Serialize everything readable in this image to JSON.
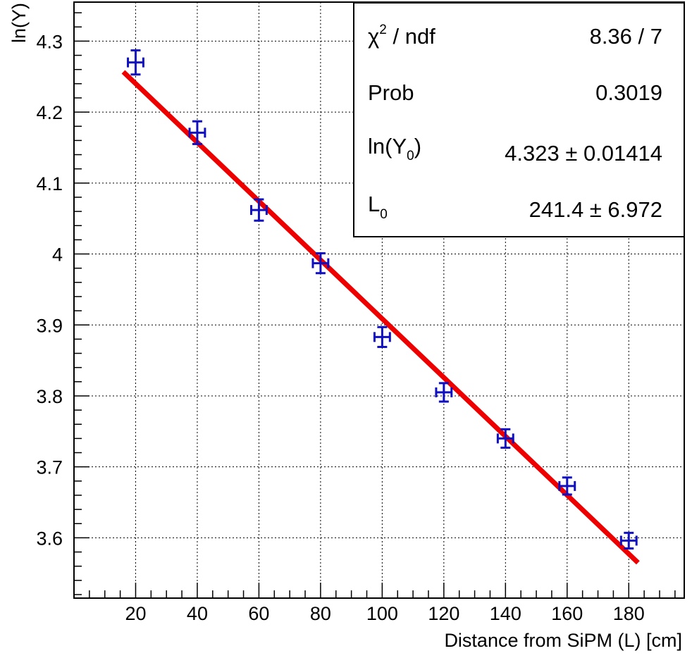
{
  "chart_data": {
    "type": "scatter",
    "xlabel": "Distance from SiPM (L) [cm]",
    "ylabel": "ln(Y)",
    "xlim": [
      0,
      198
    ],
    "ylim": [
      3.515,
      4.355
    ],
    "grid": true,
    "x_ticks": [
      20,
      40,
      60,
      80,
      100,
      120,
      140,
      160,
      180
    ],
    "y_ticks": [
      3.6,
      3.7,
      3.8,
      3.9,
      4.0,
      4.1,
      4.2,
      4.3
    ],
    "x_tick_labels": [
      "20",
      "40",
      "60",
      "80",
      "100",
      "120",
      "140",
      "160",
      "180"
    ],
    "y_tick_labels": [
      "3.6",
      "3.7",
      "3.8",
      "3.9",
      "4",
      "4.1",
      "4.2",
      "4.3"
    ],
    "series": [
      {
        "kind": "points_with_errors",
        "color": "#1010c0",
        "x": [
          20,
          40,
          60,
          80,
          100,
          120,
          140,
          160,
          180
        ],
        "y": [
          4.27,
          4.171,
          4.062,
          3.987,
          3.883,
          3.805,
          3.74,
          3.673,
          3.596
        ],
        "x_err": [
          2.5,
          2.5,
          2.5,
          2.5,
          2.5,
          2.5,
          2.5,
          2.5,
          2.5
        ],
        "y_err": [
          0.017,
          0.016,
          0.015,
          0.014,
          0.014,
          0.013,
          0.013,
          0.012,
          0.011
        ]
      },
      {
        "kind": "fit_line",
        "color": "#ee0000",
        "x": [
          16,
          183
        ],
        "y": [
          4.2567,
          3.5649
        ]
      }
    ],
    "stats_box": {
      "rows": [
        {
          "label": "χ",
          "label_sup": "2",
          "label_rest": " / ndf",
          "value": "8.36 / 7"
        },
        {
          "label": "Prob",
          "value": "0.3019"
        },
        {
          "label": "ln(Y",
          "label_sub": "0",
          "label_rest": ")",
          "value": "4.323 ± 0.01414"
        },
        {
          "label": "L",
          "label_sub": "0",
          "value": "241.4 ± 6.972"
        }
      ]
    }
  }
}
